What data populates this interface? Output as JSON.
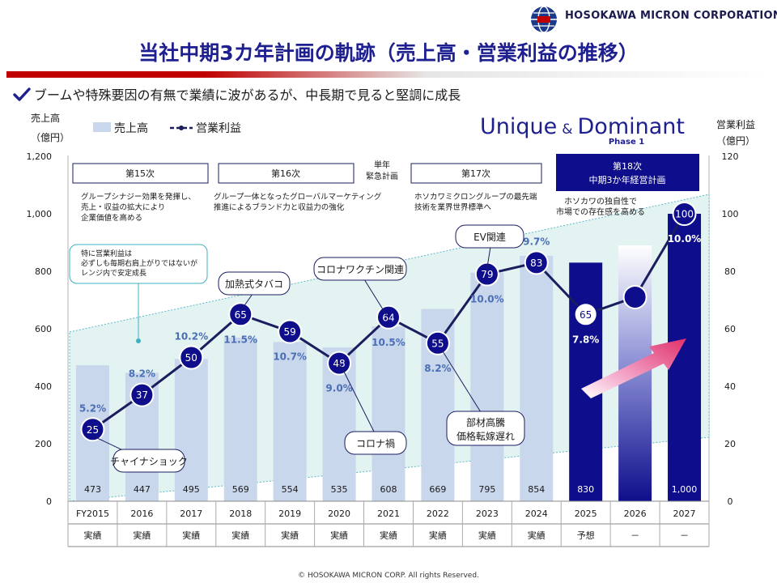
{
  "company": {
    "name_prefix": "HOSOKAWA ",
    "name_micron": "MICRON",
    "name_suffix": " CORPORATION",
    "logo_icon": "globe-logo-icon"
  },
  "title": "当社中期3カ年計画の軌跡（売上高・営業利益の推移）",
  "subtitle": "ブームや特殊要因の有無で業績に波があるが、中長期で見ると堅調に成長",
  "copyright": "© HOSOKAWA MICRON CORP.   All rights Reserved.",
  "colors": {
    "title": "#1f2090",
    "navy": "#0e0e8c",
    "bar_light": "#c9d7ec",
    "line": "#1a1e5e",
    "percent": "#4a6fb5",
    "accent_red": "#c00000",
    "band_fill": "#e3f3f2",
    "arrow": "#e0306a"
  },
  "chart_data": {
    "type": "bar",
    "legend": {
      "sales": "売上高",
      "profit": "営業利益",
      "position": "top-left"
    },
    "left_axis": {
      "label_line1": "売上高",
      "label_line2": "（億円）",
      "ticks": [
        "0",
        "200",
        "400",
        "600",
        "800",
        "1,000",
        "1,200"
      ],
      "min": 0,
      "max": 1200
    },
    "right_axis": {
      "label_line1": "営業利益",
      "label_line2": "（億円）",
      "ticks": [
        "0",
        "20",
        "40",
        "60",
        "80",
        "100",
        "120"
      ],
      "min": 0,
      "max": 120
    },
    "categories": [
      "FY2015",
      "2016",
      "2017",
      "2018",
      "2019",
      "2020",
      "2021",
      "2022",
      "2023",
      "2024",
      "2025",
      "2026",
      "2027"
    ],
    "status": [
      "実績",
      "実績",
      "実績",
      "実績",
      "実績",
      "実績",
      "実績",
      "実績",
      "実績",
      "実績",
      "予想",
      "－",
      "－"
    ],
    "series": [
      {
        "name": "売上高",
        "values": [
          473,
          447,
          495,
          569,
          554,
          535,
          608,
          669,
          795,
          854,
          830,
          890,
          1000
        ],
        "labels": [
          "473",
          "447",
          "495",
          "569",
          "554",
          "535",
          "608",
          "669",
          "795",
          "854",
          "830",
          "",
          "1,000"
        ]
      },
      {
        "name": "営業利益",
        "values": [
          25,
          37,
          50,
          65,
          59,
          48,
          64,
          55,
          79,
          83,
          65,
          71,
          100
        ],
        "labels": [
          "25",
          "37",
          "50",
          "65",
          "59",
          "48",
          "64",
          "55",
          "79",
          "83",
          "65",
          "",
          "100"
        ]
      }
    ],
    "margins": [
      "5.2%",
      "8.2%",
      "10.2%",
      "11.5%",
      "10.7%",
      "9.0%",
      "10.5%",
      "8.2%",
      "10.0%",
      "9.7%",
      "7.8%",
      "",
      "10.0%"
    ],
    "plans": [
      {
        "name": "第15次",
        "desc_line1": "グループシナジー効果を発揮し、",
        "desc_line2": "売上・収益の拡大により",
        "desc_line3": "企業価値を高める"
      },
      {
        "name": "第16次",
        "desc_line1": "グループ一体となったグローバルマーケティング",
        "desc_line2": "推進によるブランド力と収益力の強化",
        "desc_line3": ""
      },
      {
        "name": "第17次",
        "desc_line1": "ホソカワミクロングループの最先端",
        "desc_line2": "技術を業界世界標準へ",
        "desc_line3": ""
      }
    ],
    "emergency_plan": {
      "line1": "単年",
      "line2": "緊急計画"
    },
    "plan18": {
      "line1": "第18次",
      "line2": "中期3か年経営計画",
      "desc_line1": "ホソカワの独自性で",
      "desc_line2": "市場での存在感を高める"
    },
    "brand": {
      "unique": "Unique",
      "amp": "&",
      "dominant": "Dominant",
      "phase": "Phase 1"
    },
    "band_note": {
      "line1": "特に営業利益は",
      "line2": "必ずしも毎期右肩上がりではないが",
      "line3": "レンジ内で安定成長"
    },
    "callouts": {
      "china": "チャイナショック",
      "takaba": "加熱式タバコ",
      "vaccine": "コロナワクチン関連",
      "ev": "EV関連",
      "corona": "コロナ禍",
      "parts_line1": "部材高騰",
      "parts_line2": "価格転嫁遅れ"
    }
  }
}
